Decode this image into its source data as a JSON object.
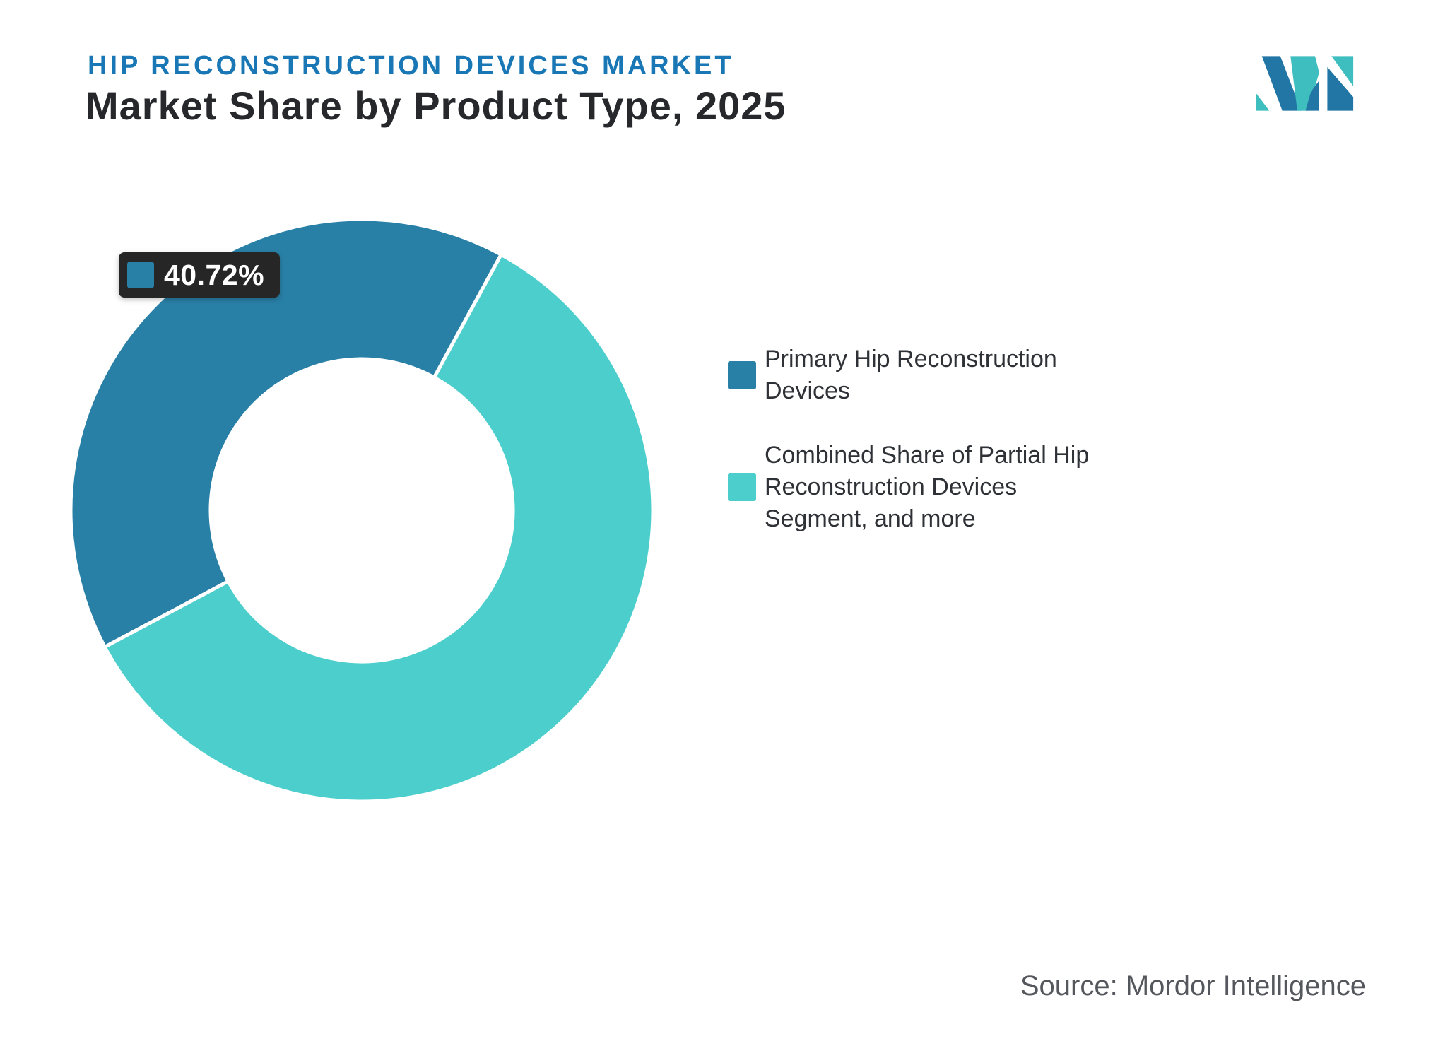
{
  "header": {
    "eyebrow": "HIP RECONSTRUCTION DEVICES MARKET",
    "title": "Market Share by Product Type, 2025"
  },
  "chart_data": {
    "type": "pie",
    "title": "Market Share by Product Type, 2025",
    "donut": true,
    "inner_radius_ratio": 0.52,
    "start_angle_deg": 242,
    "legend_position": "right",
    "series": [
      {
        "name": "Primary Hip Reconstruction Devices",
        "value": 40.72,
        "color": "#2980A7"
      },
      {
        "name": "Combined Share of Partial Hip Reconstruction Devices Segment, and more",
        "value": 59.28,
        "color": "#4CCFCC"
      }
    ],
    "data_label": {
      "text": "40.72%",
      "series": "Primary Hip Reconstruction Devices"
    }
  },
  "source": {
    "text": "Source: Mordor Intelligence"
  },
  "logo": {
    "name": "Mordor Intelligence",
    "blue": "#2176A5",
    "teal": "#3EBEBF"
  },
  "theme": {
    "accent_blue": "#2980A7",
    "accent_teal": "#4CCFCC",
    "title_blue": "#1877B4",
    "text_dark": "#26282C",
    "legend_text": "#2E3136",
    "tooltip_bg": "#262626",
    "tooltip_text": "#FFFFFF",
    "source_text": "#54575C",
    "logo_blue": "#2176A5",
    "logo_teal": "#3EBEBF",
    "background": "#FFFFFF"
  }
}
